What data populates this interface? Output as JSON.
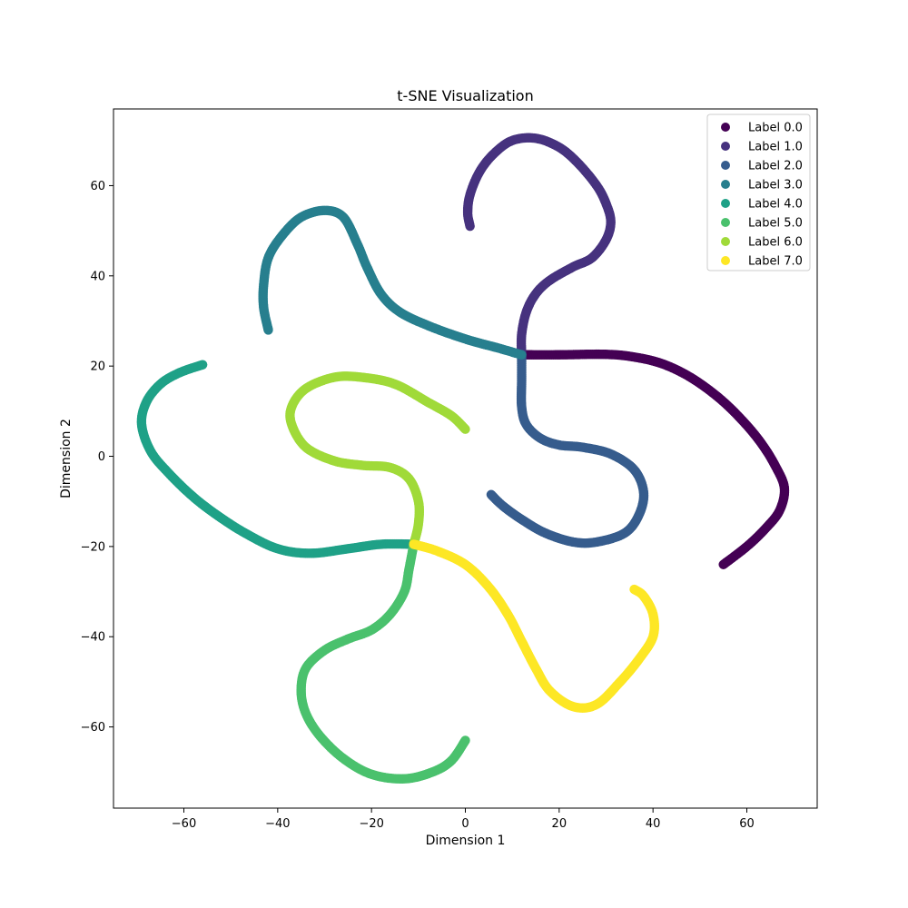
{
  "chart_data": {
    "type": "scatter",
    "title": "t-SNE Visualization",
    "xlabel": "Dimension 1",
    "ylabel": "Dimension 2",
    "xlim": [
      -75,
      75
    ],
    "ylim": [
      -78,
      77
    ],
    "xticks": [
      -60,
      -40,
      -20,
      0,
      20,
      40,
      60
    ],
    "yticks": [
      -60,
      -40,
      -20,
      0,
      20,
      40,
      60
    ],
    "grid": false,
    "legend_position": "upper-right",
    "series": [
      {
        "name": "Label 0.0",
        "color": "#440154",
        "points": [
          [
            12,
            22.5
          ],
          [
            20,
            22.5
          ],
          [
            30,
            22.6
          ],
          [
            36,
            22
          ],
          [
            42,
            20.5
          ],
          [
            48,
            17.5
          ],
          [
            54,
            13
          ],
          [
            59,
            8
          ],
          [
            63,
            3
          ],
          [
            66,
            -2
          ],
          [
            68,
            -7
          ],
          [
            67,
            -12
          ],
          [
            64,
            -16
          ],
          [
            60,
            -20
          ],
          [
            55,
            -24
          ]
        ]
      },
      {
        "name": "Label 1.0",
        "color": "#46327e",
        "points": [
          [
            12,
            22.5
          ],
          [
            12,
            27
          ],
          [
            13,
            32
          ],
          [
            15,
            36
          ],
          [
            18,
            39
          ],
          [
            23,
            42
          ],
          [
            27,
            44
          ],
          [
            30,
            48
          ],
          [
            31,
            52
          ],
          [
            30,
            56
          ],
          [
            28,
            60
          ],
          [
            24,
            65
          ],
          [
            20,
            68.5
          ],
          [
            15,
            70.5
          ],
          [
            10,
            70
          ],
          [
            6,
            67
          ],
          [
            3,
            63
          ],
          [
            1,
            58
          ],
          [
            0.5,
            54
          ],
          [
            1,
            51
          ]
        ]
      },
      {
        "name": "Label 2.0",
        "color": "#365c8d",
        "points": [
          [
            12,
            22.5
          ],
          [
            12,
            17
          ],
          [
            12,
            11
          ],
          [
            13,
            7
          ],
          [
            16,
            4
          ],
          [
            20,
            2.5
          ],
          [
            25,
            2
          ],
          [
            31,
            0.5
          ],
          [
            36,
            -3
          ],
          [
            38,
            -8
          ],
          [
            37,
            -13
          ],
          [
            34,
            -17
          ],
          [
            28,
            -19
          ],
          [
            23,
            -19
          ],
          [
            17,
            -17
          ],
          [
            12,
            -14
          ],
          [
            8,
            -11
          ],
          [
            5.5,
            -8.5
          ]
        ]
      },
      {
        "name": "Label 3.0",
        "color": "#277f8e",
        "points": [
          [
            12,
            22.5
          ],
          [
            7,
            24
          ],
          [
            0,
            26
          ],
          [
            -8,
            29
          ],
          [
            -14,
            32
          ],
          [
            -18,
            36
          ],
          [
            -21,
            42
          ],
          [
            -23,
            47
          ],
          [
            -26,
            53
          ],
          [
            -30,
            54.5
          ],
          [
            -35,
            53
          ],
          [
            -39,
            49
          ],
          [
            -42,
            44
          ],
          [
            -43,
            38
          ],
          [
            -43,
            33
          ],
          [
            -42,
            28
          ]
        ]
      },
      {
        "name": "Label 4.0",
        "color": "#1fa187",
        "points": [
          [
            -11,
            -19.5
          ],
          [
            -18,
            -19.5
          ],
          [
            -25,
            -20.5
          ],
          [
            -33,
            -21.5
          ],
          [
            -40,
            -20.5
          ],
          [
            -47,
            -17
          ],
          [
            -53,
            -13
          ],
          [
            -58,
            -9
          ],
          [
            -63,
            -4
          ],
          [
            -67,
            1
          ],
          [
            -69,
            7
          ],
          [
            -68,
            12
          ],
          [
            -65,
            16
          ],
          [
            -61,
            18.5
          ],
          [
            -56,
            20.3
          ]
        ]
      },
      {
        "name": "Label 5.0",
        "color": "#4ac16d",
        "points": [
          [
            -11,
            -19.5
          ],
          [
            -12,
            -25
          ],
          [
            -13,
            -30
          ],
          [
            -16,
            -35
          ],
          [
            -20,
            -38.5
          ],
          [
            -25,
            -40.5
          ],
          [
            -30,
            -43
          ],
          [
            -34,
            -47
          ],
          [
            -35,
            -52
          ],
          [
            -34,
            -57
          ],
          [
            -31,
            -62
          ],
          [
            -26,
            -67
          ],
          [
            -20,
            -70.5
          ],
          [
            -13,
            -71.5
          ],
          [
            -7,
            -70
          ],
          [
            -3,
            -67.5
          ],
          [
            0,
            -63
          ]
        ]
      },
      {
        "name": "Label 6.0",
        "color": "#a0da39",
        "points": [
          [
            -11,
            -19.5
          ],
          [
            -10,
            -15
          ],
          [
            -10,
            -10
          ],
          [
            -12,
            -5
          ],
          [
            -16,
            -2.5
          ],
          [
            -22,
            -2
          ],
          [
            -28,
            -1
          ],
          [
            -34,
            2
          ],
          [
            -37,
            7
          ],
          [
            -37,
            11
          ],
          [
            -34,
            15
          ],
          [
            -28,
            17.5
          ],
          [
            -22,
            17.5
          ],
          [
            -15,
            16
          ],
          [
            -8,
            12
          ],
          [
            -3,
            9
          ],
          [
            0,
            6
          ]
        ]
      },
      {
        "name": "Label 7.0",
        "color": "#fde725",
        "points": [
          [
            -11,
            -19.5
          ],
          [
            -6,
            -21
          ],
          [
            0,
            -24
          ],
          [
            5,
            -29
          ],
          [
            9,
            -35
          ],
          [
            12,
            -41
          ],
          [
            15,
            -47
          ],
          [
            18,
            -52
          ],
          [
            23,
            -55.5
          ],
          [
            28,
            -55
          ],
          [
            33,
            -50
          ],
          [
            37,
            -45
          ],
          [
            40,
            -40
          ],
          [
            40,
            -35
          ],
          [
            38,
            -31
          ],
          [
            36,
            -29.5
          ]
        ]
      }
    ]
  }
}
